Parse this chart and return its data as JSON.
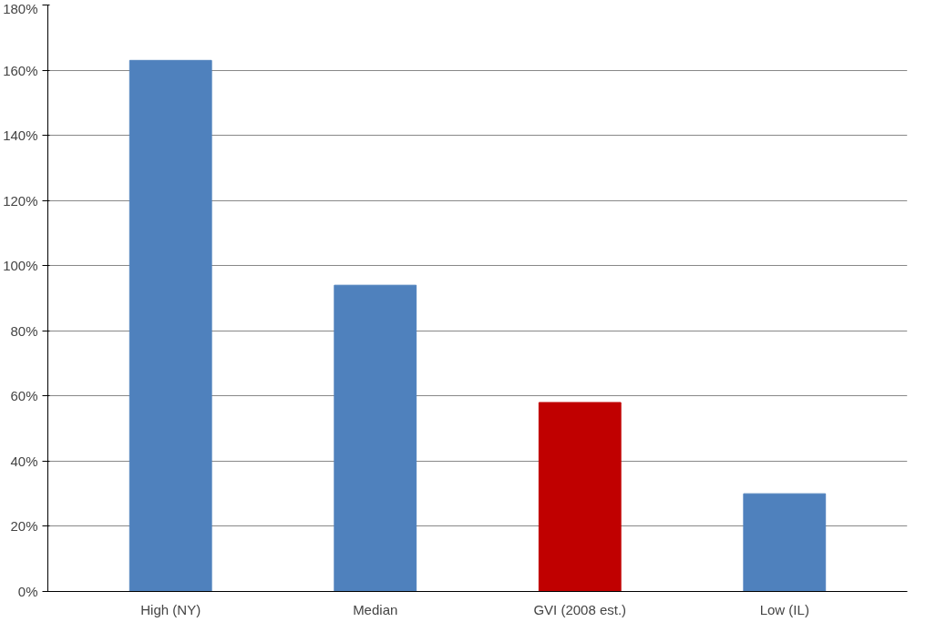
{
  "chart_data": {
    "type": "bar",
    "categories": [
      "High (NY)",
      "Median",
      "GVI (2008 est.)",
      "Low (IL)"
    ],
    "values": [
      163,
      94,
      58,
      30
    ],
    "colors": [
      "#4f81bd",
      "#4f81bd",
      "#c00000",
      "#4f81bd"
    ],
    "ylim": [
      0,
      180
    ],
    "yticks": [
      {
        "value": 0,
        "label": "0%"
      },
      {
        "value": 20,
        "label": "20%"
      },
      {
        "value": 40,
        "label": "40%"
      },
      {
        "value": 60,
        "label": "60%"
      },
      {
        "value": 80,
        "label": "80%"
      },
      {
        "value": 100,
        "label": "100%"
      },
      {
        "value": 120,
        "label": "120%"
      },
      {
        "value": 140,
        "label": "140%"
      },
      {
        "value": 160,
        "label": "160%"
      },
      {
        "value": 180,
        "label": "180%"
      }
    ],
    "grid": "y"
  }
}
